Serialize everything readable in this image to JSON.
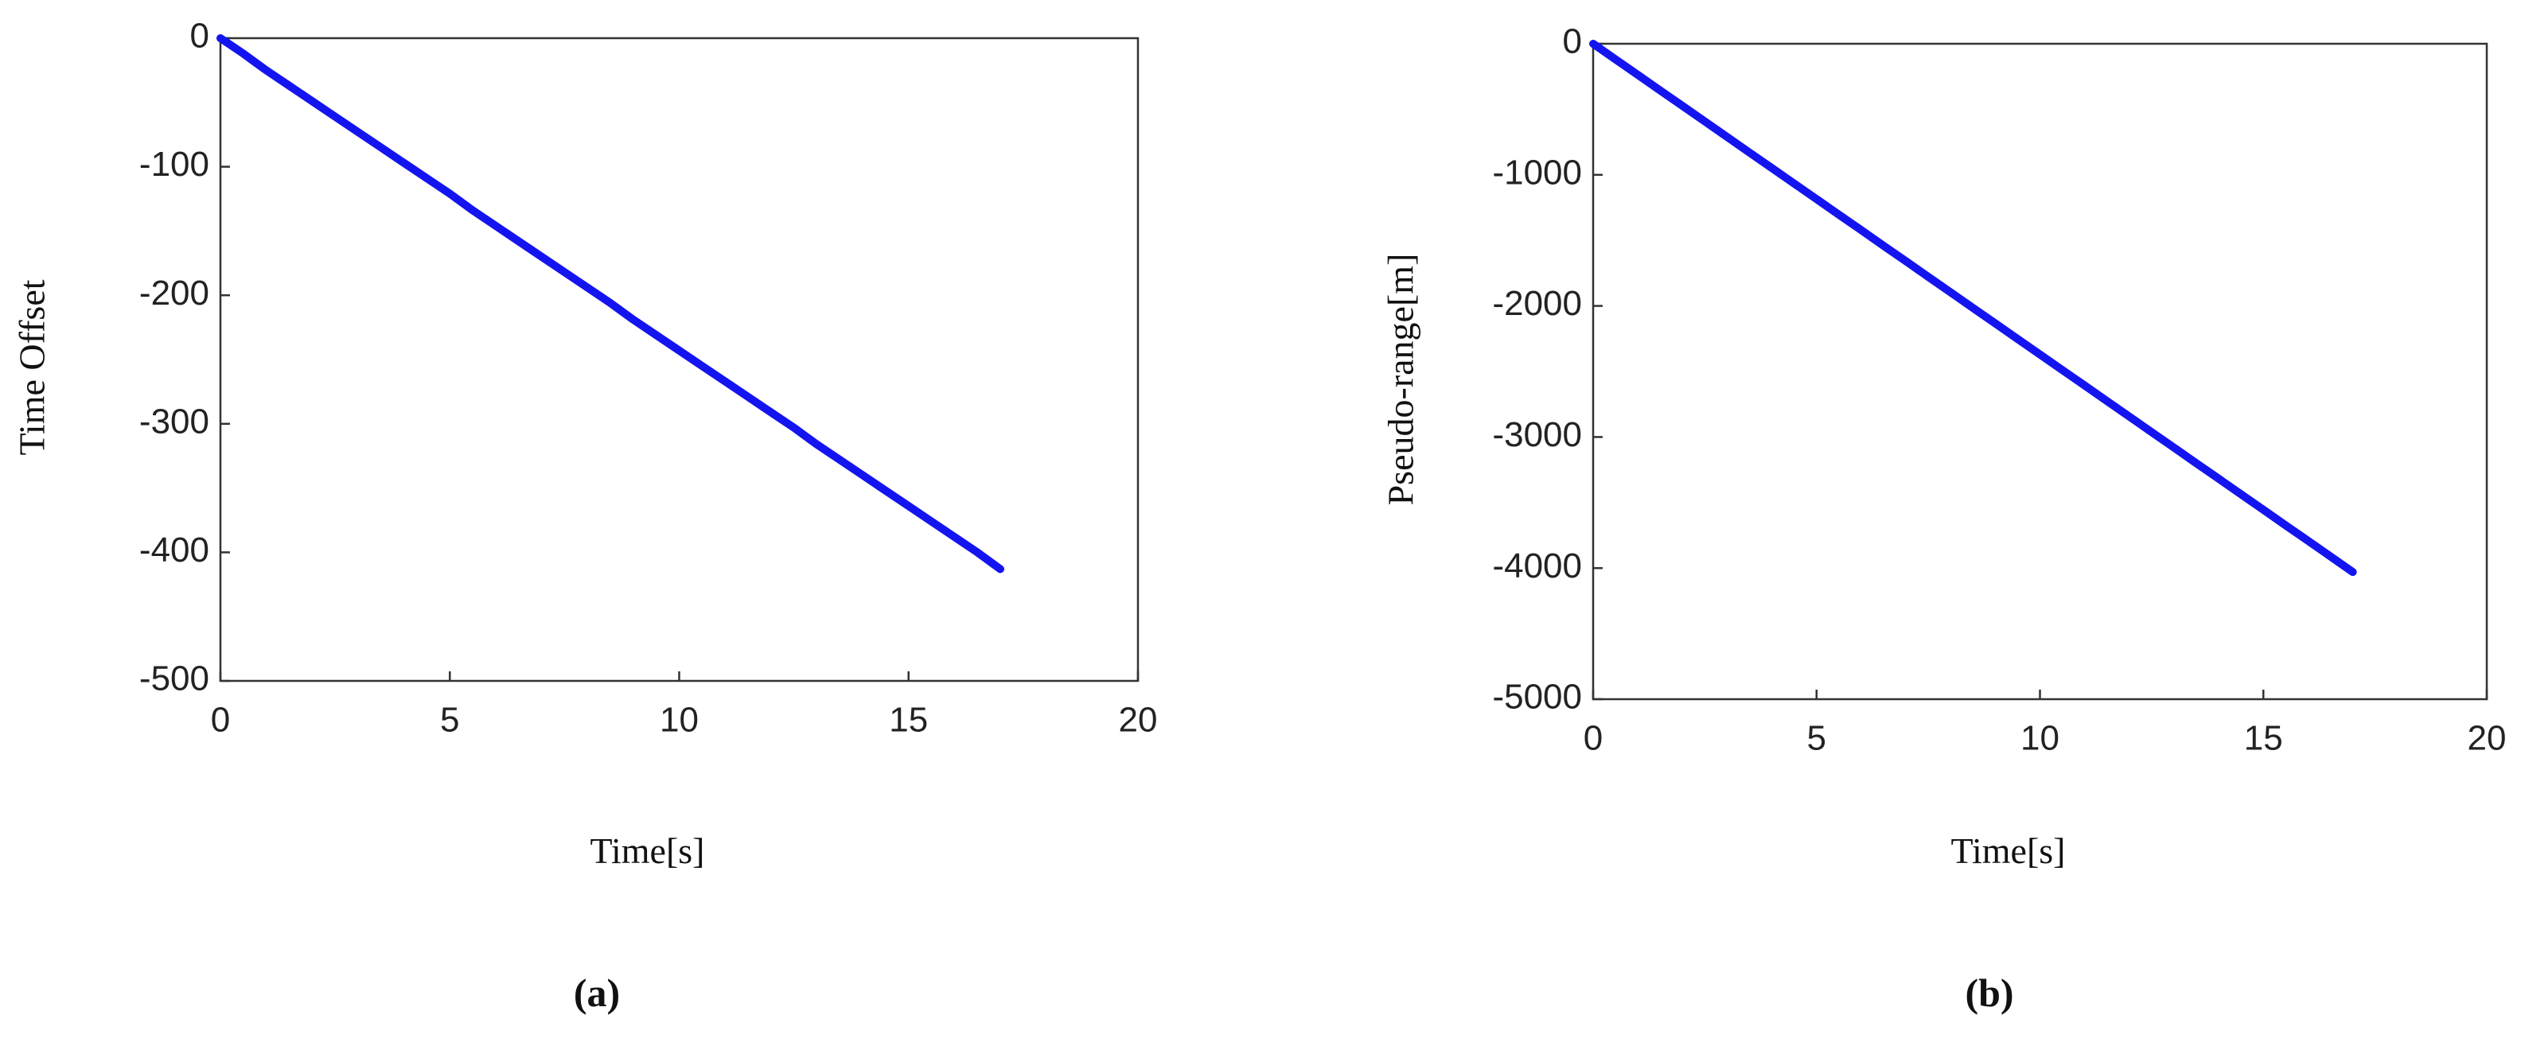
{
  "chart_data": [
    {
      "type": "line",
      "label": "(a)",
      "xlabel": "Time[s]",
      "ylabel": "Time Offset",
      "x": [
        0,
        0.5,
        1,
        1.5,
        2,
        2.5,
        3,
        3.5,
        4,
        4.5,
        5,
        5.5,
        6,
        6.5,
        7,
        7.5,
        8,
        8.5,
        9,
        9.5,
        10,
        10.5,
        11,
        11.5,
        12,
        12.5,
        13,
        13.5,
        14,
        14.5,
        15,
        15.5,
        16,
        16.5,
        17
      ],
      "series": [
        {
          "color": "#1414f0",
          "values": [
            0,
            -12,
            -25,
            -37,
            -49,
            -61,
            -73,
            -85,
            -97,
            -109,
            -121,
            -134,
            -146,
            -158,
            -170,
            -182,
            -194,
            -206,
            -219,
            -231,
            -243,
            -255,
            -267,
            -279,
            -291,
            -303,
            -316,
            -328,
            -340,
            -352,
            -364,
            -376,
            -388,
            -400,
            -413
          ]
        }
      ],
      "xlim": [
        0,
        20
      ],
      "xticks": [
        0,
        5,
        10,
        15,
        20
      ],
      "ylim": [
        -500,
        0
      ],
      "yticks": [
        -500,
        -400,
        -300,
        -200,
        -100,
        0
      ]
    },
    {
      "type": "line",
      "label": "(b)",
      "xlabel": "Time[s]",
      "ylabel": "Pseudo-range[m]",
      "x": [
        0,
        0.5,
        1,
        1.5,
        2,
        2.5,
        3,
        3.5,
        4,
        4.5,
        5,
        5.5,
        6,
        6.5,
        7,
        7.5,
        8,
        8.5,
        9,
        9.5,
        10,
        10.5,
        11,
        11.5,
        12,
        12.5,
        13,
        13.5,
        14,
        14.5,
        15,
        15.5,
        16,
        16.5,
        17
      ],
      "series": [
        {
          "color": "#1414f0",
          "values": [
            0,
            -119,
            -237,
            -356,
            -474,
            -593,
            -711,
            -830,
            -948,
            -1067,
            -1185,
            -1304,
            -1422,
            -1541,
            -1659,
            -1778,
            -1896,
            -2015,
            -2133,
            -2252,
            -2370,
            -2489,
            -2607,
            -2726,
            -2844,
            -2963,
            -3081,
            -3200,
            -3318,
            -3437,
            -3555,
            -3674,
            -3792,
            -3911,
            -4030
          ]
        }
      ],
      "xlim": [
        0,
        20
      ],
      "xticks": [
        0,
        5,
        10,
        15,
        20
      ],
      "ylim": [
        -5000,
        0
      ],
      "yticks": [
        -5000,
        -4000,
        -3000,
        -2000,
        -1000,
        0
      ]
    }
  ]
}
